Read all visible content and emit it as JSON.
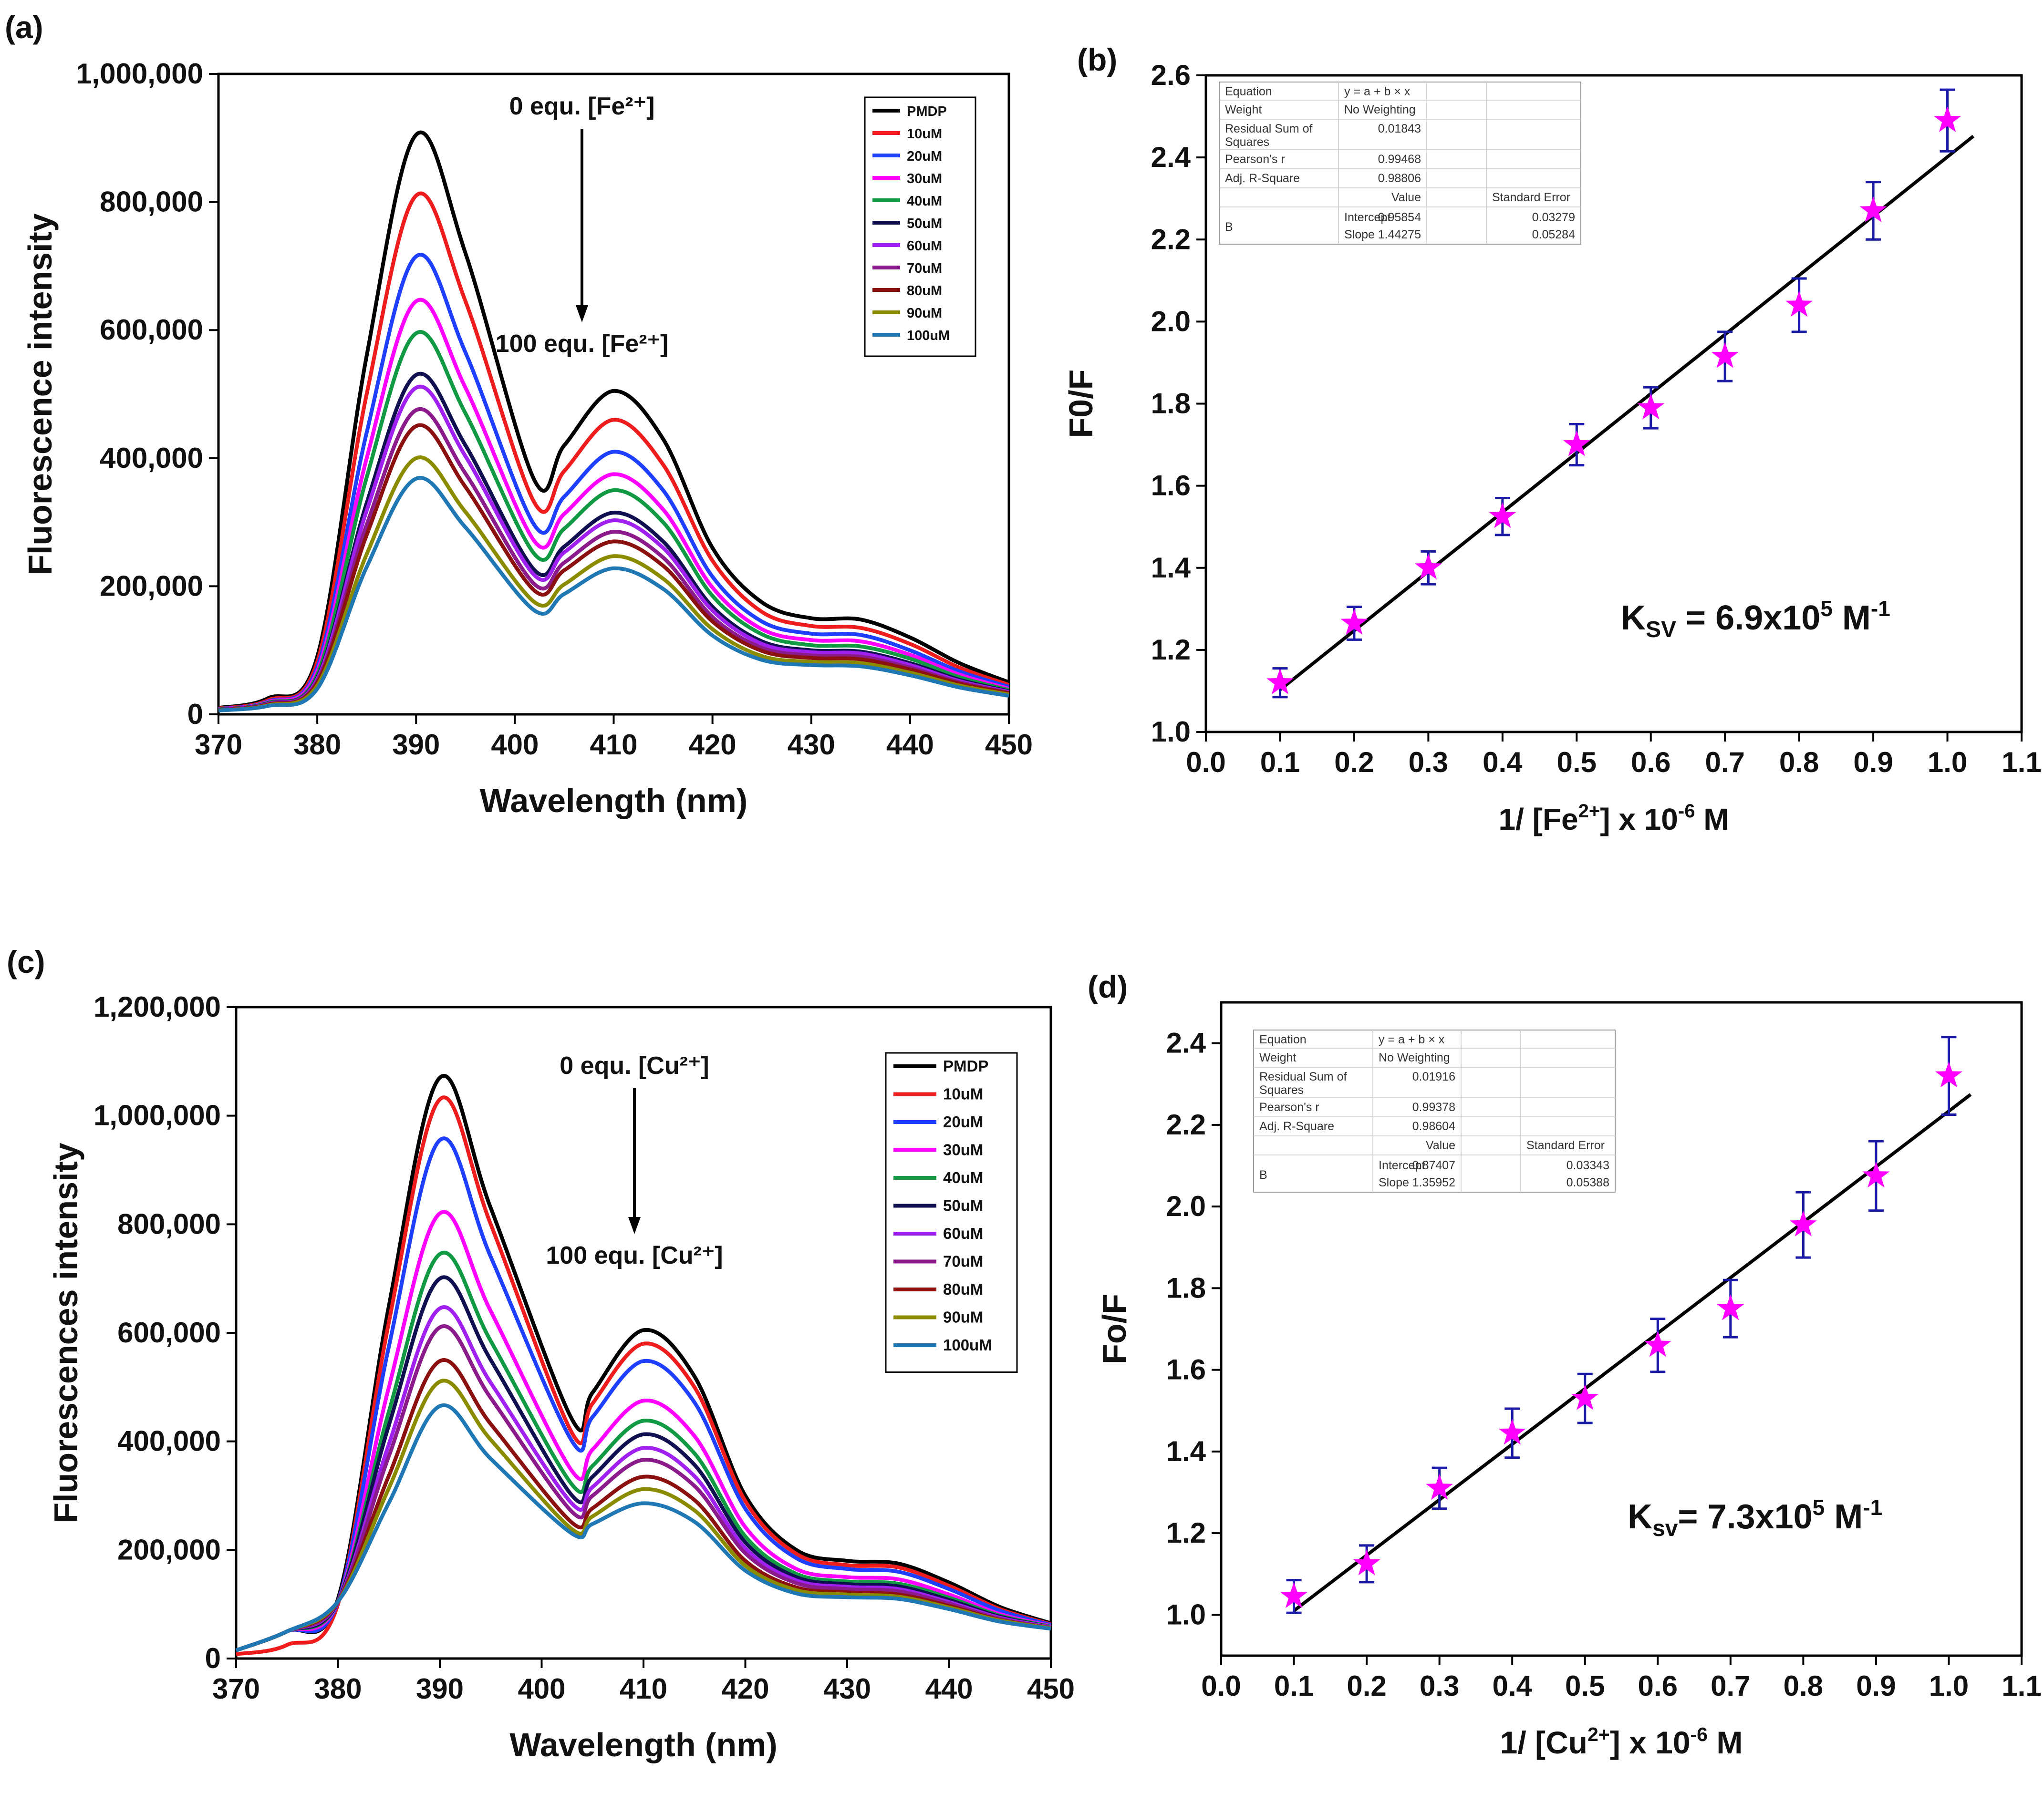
{
  "chart_data": [
    {
      "panel": "(a)",
      "type": "line",
      "xlabel": "Wavelength (nm)",
      "ylabel": "Fluorescence intensity",
      "xlim": [
        370,
        450
      ],
      "ylim": [
        0,
        1000000
      ],
      "x_ticks": [
        "370",
        "380",
        "390",
        "400",
        "410",
        "420",
        "430",
        "440",
        "450"
      ],
      "y_ticks": [
        "0",
        "200,000",
        "400,000",
        "600,000",
        "800,000",
        "1,000,000"
      ],
      "annotation_top": "0 equ. [Fe²⁺]",
      "annotation_bottom": "100 equ. [Fe²⁺]",
      "legend_position": "top-right",
      "x": [
        370,
        375,
        380,
        385,
        390,
        395,
        402,
        405,
        410,
        415,
        420,
        425,
        430,
        435,
        440,
        445,
        450
      ],
      "series": [
        {
          "name": "PMDP",
          "color": "#000000",
          "values": [
            10000,
            25000,
            90000,
            560000,
            905000,
            720000,
            365000,
            420000,
            505000,
            430000,
            260000,
            175000,
            150000,
            148000,
            120000,
            80000,
            50000
          ]
        },
        {
          "name": "10uM",
          "color": "#ee1c1c",
          "values": [
            9000,
            22000,
            82000,
            500000,
            810000,
            645000,
            330000,
            380000,
            460000,
            390000,
            240000,
            160000,
            138000,
            135000,
            110000,
            73000,
            46000
          ]
        },
        {
          "name": "20uM",
          "color": "#1f3fff",
          "values": [
            8500,
            20000,
            74000,
            440000,
            715000,
            565000,
            295000,
            340000,
            410000,
            350000,
            215000,
            145000,
            126000,
            124000,
            100000,
            67000,
            43000
          ]
        },
        {
          "name": "30uM",
          "color": "#ff00ff",
          "values": [
            8000,
            19000,
            68000,
            400000,
            645000,
            510000,
            270000,
            313000,
            375000,
            320000,
            198000,
            133000,
            116000,
            114000,
            93000,
            62000,
            40000
          ]
        },
        {
          "name": "40uM",
          "color": "#119944",
          "values": [
            7500,
            18000,
            62000,
            370000,
            595000,
            470000,
            250000,
            290000,
            350000,
            300000,
            185000,
            125000,
            108000,
            106000,
            87000,
            58000,
            38000
          ]
        },
        {
          "name": "50uM",
          "color": "#101050",
          "values": [
            7200,
            17000,
            57000,
            330000,
            530000,
            420000,
            225000,
            262000,
            315000,
            270000,
            168000,
            114000,
            100000,
            98000,
            80000,
            54000,
            36000
          ]
        },
        {
          "name": "60uM",
          "color": "#a020f0",
          "values": [
            7000,
            16500,
            55000,
            318000,
            510000,
            403000,
            217000,
            253000,
            303000,
            260000,
            162000,
            110000,
            97000,
            95000,
            77000,
            52000,
            35000
          ]
        },
        {
          "name": "70uM",
          "color": "#8b1a8b",
          "values": [
            6800,
            16000,
            52000,
            296000,
            475000,
            376000,
            203000,
            237000,
            285000,
            245000,
            152000,
            104000,
            92000,
            90000,
            73000,
            50000,
            34000
          ]
        },
        {
          "name": "80uM",
          "color": "#8b1010",
          "values": [
            6500,
            15000,
            49000,
            280000,
            450000,
            355000,
            193000,
            225000,
            270000,
            232000,
            145000,
            99000,
            88000,
            86000,
            70000,
            48000,
            33000
          ]
        },
        {
          "name": "90uM",
          "color": "#8b8b00",
          "values": [
            6200,
            14000,
            45000,
            250000,
            400000,
            316000,
            175000,
            203000,
            247000,
            212000,
            133000,
            91000,
            82000,
            80000,
            65000,
            45000,
            31000
          ]
        },
        {
          "name": "100uM",
          "color": "#1f77b4",
          "values": [
            6000,
            13000,
            40000,
            230000,
            368000,
            292000,
            162000,
            188000,
            228000,
            196000,
            123000,
            85000,
            77000,
            75000,
            61000,
            42000,
            29000
          ]
        }
      ]
    },
    {
      "panel": "(b)",
      "type": "scatter",
      "xlabel_prefix": "1/ [Fe",
      "xlabel_sup1": "2+",
      "xlabel_mid": "] x 10",
      "xlabel_sup2": "-6",
      "xlabel_suffix": " M",
      "ylabel": "F0/F",
      "xlim": [
        0.0,
        1.1
      ],
      "ylim": [
        1.0,
        2.6
      ],
      "x_ticks": [
        "0.0",
        "0.1",
        "0.2",
        "0.3",
        "0.4",
        "0.5",
        "0.6",
        "0.7",
        "0.8",
        "0.9",
        "1.0",
        "1.1"
      ],
      "y_ticks": [
        "1.0",
        "1.2",
        "1.4",
        "1.6",
        "1.8",
        "2.0",
        "2.2",
        "2.4",
        "2.6"
      ],
      "x": [
        0.1,
        0.2,
        0.3,
        0.4,
        0.5,
        0.6,
        0.7,
        0.8,
        0.9,
        1.0
      ],
      "y": [
        1.12,
        1.265,
        1.4,
        1.525,
        1.7,
        1.79,
        1.915,
        2.04,
        2.27,
        2.49
      ],
      "err": [
        0.035,
        0.04,
        0.04,
        0.045,
        0.05,
        0.05,
        0.06,
        0.065,
        0.07,
        0.075
      ],
      "marker_color": "#ff00ff",
      "errorbar_color": "#1a1aa6",
      "fit": {
        "intercept": 0.95854,
        "slope": 1.44275,
        "x_range": [
          0.1,
          1.035
        ]
      },
      "ksv_base": "K",
      "ksv_sub": "SV",
      "ksv_value": " = 6.9x10",
      "ksv_exp": "5",
      "ksv_unit": "  M",
      "ksv_unit_exp": "-1",
      "fit_table": {
        "equation_label": "Equation",
        "equation_value": "y = a + b × x",
        "weight_label": "Weight",
        "weight_value": "No Weighting",
        "rss_label_1": "Residual Sum of",
        "rss_label_2": "Squares",
        "rss_value": "0.01843",
        "pearson_label": "Pearson's r",
        "pearson_value": "0.99468",
        "adjr_label": "Adj. R-Square",
        "adjr_value": "0.98806",
        "col_value": "Value",
        "col_error": "Standard Error",
        "b_label": "B",
        "intercept_label": "Intercept",
        "intercept_value": "0.95854",
        "intercept_error": "0.03279",
        "slope_label": "Slope",
        "slope_value": "1.44275",
        "slope_error": "0.05284"
      }
    },
    {
      "panel": "(c)",
      "type": "line",
      "xlabel": "Wavelength (nm)",
      "ylabel": "Fluorescences intensity",
      "xlim": [
        370,
        450
      ],
      "ylim": [
        0,
        1200000
      ],
      "x_ticks": [
        "370",
        "380",
        "390",
        "400",
        "410",
        "420",
        "430",
        "440",
        "450"
      ],
      "y_ticks": [
        "0",
        "200,000",
        "400,000",
        "600,000",
        "800,000",
        "1,000,000",
        "1,200,000"
      ],
      "annotation_top": "0 equ. [Cu²⁺]",
      "annotation_bottom": "100 equ. [Cu²⁺]",
      "legend_position": "top-right",
      "x": [
        370,
        375,
        380,
        385,
        390,
        395,
        403,
        405,
        410,
        415,
        420,
        425,
        430,
        435,
        440,
        445,
        450
      ],
      "series": [
        {
          "name": "PMDP",
          "color": "#000000",
          "values": [
            15000,
            50000,
            110000,
            650000,
            1070000,
            830000,
            440000,
            490000,
            605000,
            520000,
            300000,
            200000,
            180000,
            175000,
            140000,
            95000,
            65000
          ]
        },
        {
          "name": "10uM",
          "color": "#ee1c1c",
          "values": [
            8000,
            25000,
            100000,
            620000,
            1030000,
            800000,
            415000,
            470000,
            580000,
            500000,
            290000,
            193000,
            172000,
            168000,
            134000,
            91000,
            63000
          ]
        },
        {
          "name": "20uM",
          "color": "#1f3fff",
          "values": [
            15000,
            50000,
            105000,
            575000,
            955000,
            740000,
            400000,
            445000,
            548000,
            472000,
            276000,
            185000,
            165000,
            160000,
            128000,
            88000,
            62000
          ]
        },
        {
          "name": "30uM",
          "color": "#ff00ff",
          "values": [
            15000,
            50000,
            105000,
            500000,
            820000,
            640000,
            345000,
            385000,
            475000,
            410000,
            242000,
            165000,
            150000,
            146000,
            118000,
            82000,
            60000
          ]
        },
        {
          "name": "40uM",
          "color": "#119944",
          "values": [
            15000,
            50000,
            105000,
            455000,
            745000,
            585000,
            320000,
            355000,
            438000,
            378000,
            225000,
            156000,
            142000,
            138000,
            112000,
            79000,
            59000
          ]
        },
        {
          "name": "50uM",
          "color": "#101050",
          "values": [
            15000,
            50000,
            105000,
            430000,
            700000,
            550000,
            300000,
            335000,
            413000,
            357000,
            214000,
            150000,
            137000,
            133000,
            108000,
            77000,
            58000
          ]
        },
        {
          "name": "60uM",
          "color": "#a020f0",
          "values": [
            15000,
            50000,
            105000,
            395000,
            645000,
            508000,
            285000,
            316000,
            388000,
            336000,
            203000,
            144000,
            132000,
            128000,
            104000,
            75000,
            58000
          ]
        },
        {
          "name": "70uM",
          "color": "#8b1a8b",
          "values": [
            15000,
            50000,
            105000,
            373000,
            610000,
            480000,
            270000,
            300000,
            366000,
            318000,
            194000,
            139000,
            128000,
            124000,
            101000,
            73000,
            57000
          ]
        },
        {
          "name": "80uM",
          "color": "#8b1010",
          "values": [
            15000,
            50000,
            105000,
            337000,
            548000,
            432000,
            250000,
            277000,
            335000,
            292000,
            180000,
            131000,
            122000,
            118000,
            97000,
            71000,
            56000
          ]
        },
        {
          "name": "90uM",
          "color": "#8b8b00",
          "values": [
            15000,
            50000,
            105000,
            314000,
            510000,
            403000,
            238000,
            262000,
            312000,
            273000,
            171000,
            126000,
            118000,
            114000,
            94000,
            70000,
            56000
          ]
        },
        {
          "name": "100uM",
          "color": "#1f77b4",
          "values": [
            15000,
            50000,
            105000,
            287000,
            465000,
            368000,
            230000,
            248000,
            286000,
            252000,
            162000,
            120000,
            113000,
            110000,
            91000,
            68000,
            55000
          ]
        }
      ]
    },
    {
      "panel": "(d)",
      "type": "scatter",
      "xlabel_prefix": "1/ [Cu",
      "xlabel_sup1": "2+",
      "xlabel_mid": "] x 10",
      "xlabel_sup2": "-6",
      "xlabel_suffix": " M",
      "ylabel": "Fo/F",
      "xlim": [
        0.0,
        1.1
      ],
      "ylim": [
        0.9,
        2.5
      ],
      "x_ticks": [
        "0.0",
        "0.1",
        "0.2",
        "0.3",
        "0.4",
        "0.5",
        "0.6",
        "0.7",
        "0.8",
        "0.9",
        "1.0",
        "1.1"
      ],
      "y_ticks": [
        "1.0",
        "1.2",
        "1.4",
        "1.6",
        "1.8",
        "2.0",
        "2.2",
        "2.4"
      ],
      "x": [
        0.1,
        0.2,
        0.3,
        0.4,
        0.5,
        0.6,
        0.7,
        0.8,
        0.9,
        1.0
      ],
      "y": [
        1.045,
        1.125,
        1.31,
        1.445,
        1.53,
        1.66,
        1.75,
        1.955,
        2.075,
        2.32
      ],
      "err": [
        0.04,
        0.045,
        0.05,
        0.06,
        0.06,
        0.065,
        0.07,
        0.08,
        0.085,
        0.095
      ],
      "marker_color": "#ff00ff",
      "errorbar_color": "#1a1aa6",
      "fit": {
        "intercept": 0.87407,
        "slope": 1.35952,
        "x_range": [
          0.1,
          1.03
        ]
      },
      "ksv_base": "K",
      "ksv_sub": "sv",
      "ksv_value": "= 7.3x10",
      "ksv_exp": "5",
      "ksv_unit": " M",
      "ksv_unit_exp": "-1",
      "fit_table": {
        "equation_label": "Equation",
        "equation_value": "y = a + b × x",
        "weight_label": "Weight",
        "weight_value": "No Weighting",
        "rss_label_1": "Residual Sum of",
        "rss_label_2": "Squares",
        "rss_value": "0.01916",
        "pearson_label": "Pearson's r",
        "pearson_value": "0.99378",
        "adjr_label": "Adj. R-Square",
        "adjr_value": "0.98604",
        "col_value": "Value",
        "col_error": "Standard Error",
        "b_label": "B",
        "intercept_label": "Intercept",
        "intercept_value": "0.87407",
        "intercept_error": "0.03343",
        "slope_label": "Slope",
        "slope_value": "1.35952",
        "slope_error": "0.05388"
      }
    }
  ]
}
